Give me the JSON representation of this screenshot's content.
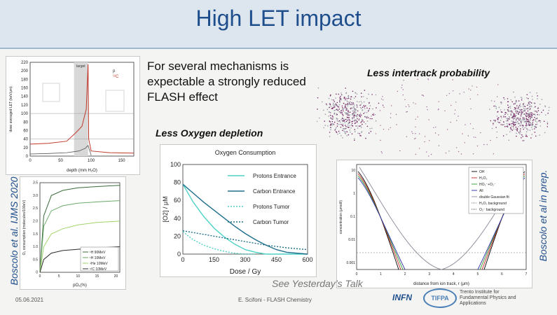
{
  "slide": {
    "title": "High LET  impact",
    "intro": "For several mechanisms is expectable a strongly reduced FLASH effect",
    "less_intertrack": "Less intertrack  probability",
    "less_oxygen": "Less  Oxygen  depletion",
    "citation_left": "Boscolo et al. IJMS 2020",
    "citation_right": "Boscolo et al in prep.",
    "see_talk": "See  Yesterday’s Talk"
  },
  "footer": {
    "date": "05.06.2021",
    "center": "E. Scifoni - FLASH Chemistry",
    "logo_infn": "INFN",
    "logo_tifpa": "TIFPA",
    "tifpa_text": "Trento Institute for Fundamental Physics and Applications"
  },
  "colors": {
    "title": "#1f4e8c",
    "header_bg": "#dde6ef",
    "carbon": "#1f6f8b",
    "proton": "#4fd1c5"
  },
  "chart_data": [
    {
      "type": "line",
      "title": "",
      "xlabel": "depth (mm H₂O)",
      "ylabel": "dose averaged LET (keV/μm)",
      "xlim": [
        0,
        170
      ],
      "ylim": [
        0,
        220
      ],
      "xticks": [
        "0",
        "50",
        "100",
        "150"
      ],
      "yticks": [
        "0",
        "20",
        "40",
        "60",
        "80",
        "100",
        "120",
        "140",
        "160",
        "180",
        "200",
        "220"
      ],
      "legend": [
        "p",
        "¹²C"
      ],
      "annotation": "target",
      "series": [
        {
          "name": "p",
          "x": [
            0,
            30,
            60,
            80,
            90,
            95,
            100
          ],
          "y": [
            5,
            6,
            8,
            12,
            18,
            25,
            2
          ]
        },
        {
          "name": "¹²C",
          "x": [
            0,
            30,
            60,
            75,
            85,
            92,
            95,
            96,
            100,
            130,
            170
          ],
          "y": [
            28,
            30,
            35,
            55,
            70,
            110,
            215,
            40,
            12,
            8,
            7
          ]
        }
      ]
    },
    {
      "type": "line",
      "title": "",
      "xlabel": "pO₂(%)",
      "ylabel": "O₂ consumption (molecules/100eV)",
      "xlim": [
        0,
        21
      ],
      "ylim": [
        0,
        3.5
      ],
      "xticks": [
        "0",
        "5",
        "10",
        "15",
        "20"
      ],
      "yticks": [
        "0",
        "0.5",
        "1.0",
        "1.5",
        "2.0",
        "2.5",
        "3.0",
        "3.5"
      ],
      "series": [
        {
          "name": "¹H  90MeV",
          "x": [
            0,
            1,
            3,
            6,
            10,
            15,
            21
          ],
          "y": [
            0,
            2.2,
            3.0,
            3.2,
            3.3,
            3.35,
            3.4
          ]
        },
        {
          "name": "¹H  10MeV",
          "x": [
            0,
            1,
            3,
            6,
            10,
            15,
            21
          ],
          "y": [
            0,
            1.8,
            2.4,
            2.6,
            2.7,
            2.75,
            2.8
          ]
        },
        {
          "name": "⁴He  10MeV",
          "x": [
            0,
            1,
            3,
            6,
            10,
            15,
            21
          ],
          "y": [
            0,
            1.0,
            1.5,
            1.7,
            1.85,
            1.95,
            2.0
          ]
        },
        {
          "name": "¹²C  10MeV",
          "x": [
            0,
            1,
            3,
            6,
            10,
            15,
            21
          ],
          "y": [
            0,
            0.5,
            0.75,
            0.85,
            0.9,
            0.95,
            1.0
          ]
        }
      ]
    },
    {
      "type": "line",
      "title": "Oxygen Consumption",
      "xlabel": "Dose / Gy",
      "ylabel": "[O2] / μM",
      "xlim": [
        0,
        600
      ],
      "ylim": [
        0,
        100
      ],
      "xticks": [
        "0",
        "150",
        "300",
        "450",
        "600"
      ],
      "yticks": [
        "0",
        "20",
        "40",
        "60",
        "80",
        "100"
      ],
      "series": [
        {
          "name": "Protons Entrance",
          "style": "solid",
          "color": "#4fd1c5",
          "x": [
            0,
            50,
            100,
            150,
            200,
            250,
            300,
            350,
            400,
            450,
            600
          ],
          "y": [
            78,
            58,
            42,
            29,
            19,
            11,
            5,
            2,
            0,
            0,
            0
          ]
        },
        {
          "name": "Carbon Entrance",
          "style": "solid",
          "color": "#1f6f8b",
          "x": [
            0,
            50,
            100,
            150,
            200,
            250,
            300,
            350,
            400,
            450,
            500,
            600
          ],
          "y": [
            78,
            68,
            58,
            49,
            40,
            31,
            23,
            16,
            10,
            5,
            2,
            0
          ]
        },
        {
          "name": "Protons Tumor",
          "style": "dotted",
          "color": "#4fd1c5",
          "x": [
            0,
            50,
            100,
            150,
            200,
            250,
            300,
            350
          ],
          "y": [
            25,
            16,
            10,
            6,
            3,
            1,
            0,
            0
          ]
        },
        {
          "name": "Carbon Tumor",
          "style": "dotted",
          "color": "#1f6f8b",
          "x": [
            0,
            100,
            200,
            300,
            400,
            500,
            600
          ],
          "y": [
            26,
            22,
            18,
            14,
            10,
            7,
            5
          ]
        }
      ]
    },
    {
      "type": "line",
      "title": "",
      "xlabel": "distance from ion track, r (μm)",
      "ylabel": "concentration (μmol/l)",
      "xticks": [
        "0",
        "1",
        "2",
        "3",
        "4",
        "5",
        "6",
        "7"
      ],
      "yticks": [
        "0.001",
        "0.01",
        "0.1",
        "1",
        "10"
      ],
      "legend": [
        "OH",
        "H₂O₂",
        "HO₂⁻+O₂⁻",
        "All",
        "double Gaussian fit",
        "H₂O₂ background",
        "O₂⁻ background"
      ]
    }
  ]
}
